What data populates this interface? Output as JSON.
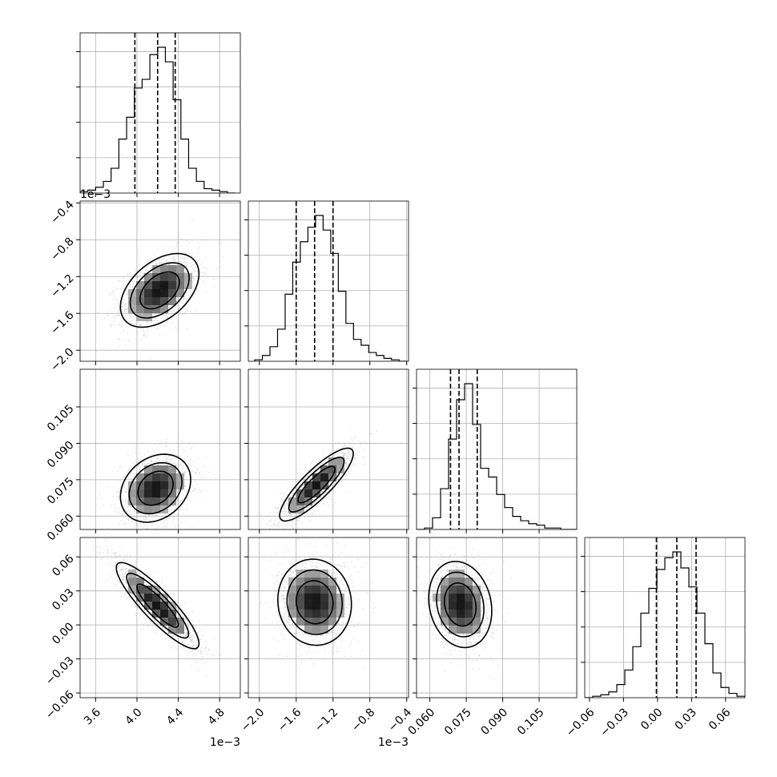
{
  "chart_data": {
    "type": "corner",
    "grid": true,
    "parameters": [
      {
        "offset_label": "1e−3",
        "range": [
          3.45,
          5.0
        ],
        "ticks": [
          3.6,
          4.0,
          4.4,
          4.8
        ],
        "tick_labels": [
          "3.6",
          "4.0",
          "4.4",
          "4.8"
        ],
        "quantiles": [
          3.98,
          4.2,
          4.37
        ],
        "hist_edges": [
          3.45,
          4.95
        ],
        "hist_counts": [
          1,
          2,
          4,
          8,
          17,
          37,
          52,
          72,
          78,
          95,
          100,
          90,
          64,
          37,
          17,
          8,
          3,
          2,
          1,
          0
        ]
      },
      {
        "offset_label": "1e−3",
        "range": [
          -2.12,
          -0.38
        ],
        "ticks": [
          -2.0,
          -1.6,
          -1.2,
          -0.8,
          -0.4
        ],
        "tick_labels": [
          "−2.0",
          "−1.6",
          "−1.2",
          "−0.8",
          "−0.4"
        ],
        "quantiles": [
          -1.6,
          -1.4,
          -1.2
        ],
        "hist_edges": [
          -2.05,
          -0.4
        ],
        "hist_counts": [
          1,
          4,
          10,
          22,
          46,
          68,
          82,
          92,
          100,
          90,
          74,
          48,
          26,
          15,
          11,
          6,
          4,
          2,
          1,
          0
        ]
      },
      {
        "offset_label": "",
        "range": [
          0.0545,
          0.1205
        ],
        "ticks": [
          0.06,
          0.075,
          0.09,
          0.105
        ],
        "tick_labels": [
          "0.060",
          "0.075",
          "0.090",
          "0.105"
        ],
        "quantiles": [
          0.0685,
          0.072,
          0.0795
        ],
        "hist_edges": [
          0.0545,
          0.1205
        ],
        "hist_counts": [
          0,
          1,
          8,
          28,
          62,
          89,
          100,
          72,
          42,
          36,
          24,
          15,
          9,
          6,
          4,
          3,
          1,
          1,
          0,
          0
        ]
      },
      {
        "offset_label": "",
        "range": [
          -0.0642,
          0.0771
        ],
        "ticks": [
          -0.06,
          -0.03,
          0.0,
          0.03,
          0.06
        ],
        "tick_labels": [
          "−0.06",
          "−0.03",
          "0.00",
          "0.03",
          "0.06"
        ],
        "quantiles": [
          -0.001,
          0.017,
          0.034
        ],
        "hist_edges": [
          -0.0642,
          0.0771
        ],
        "hist_counts": [
          0,
          1,
          2,
          4,
          9,
          19,
          35,
          58,
          75,
          88,
          96,
          100,
          89,
          76,
          58,
          37,
          17,
          7,
          3,
          1
        ]
      }
    ],
    "pairs": [
      {
        "row": 1,
        "col": 0,
        "center": [
          4.22,
          -1.35
        ],
        "sd": [
          0.19,
          0.2
        ],
        "rho": 0.45
      },
      {
        "row": 2,
        "col": 0,
        "center": [
          4.18,
          0.0715
        ],
        "sd": [
          0.17,
          0.007
        ],
        "rho": 0.25
      },
      {
        "row": 2,
        "col": 1,
        "center": [
          -1.38,
          0.073
        ],
        "sd": [
          0.2,
          0.0075
        ],
        "rho": 0.85
      },
      {
        "row": 3,
        "col": 0,
        "center": [
          4.2,
          0.017
        ],
        "sd": [
          0.2,
          0.019
        ],
        "rho": -0.88
      },
      {
        "row": 3,
        "col": 1,
        "center": [
          -1.4,
          0.02
        ],
        "sd": [
          0.2,
          0.019
        ],
        "rho": -0.05
      },
      {
        "row": 3,
        "col": 2,
        "center": [
          0.0725,
          0.018
        ],
        "sd": [
          0.0065,
          0.019
        ],
        "rho": -0.15
      }
    ]
  }
}
